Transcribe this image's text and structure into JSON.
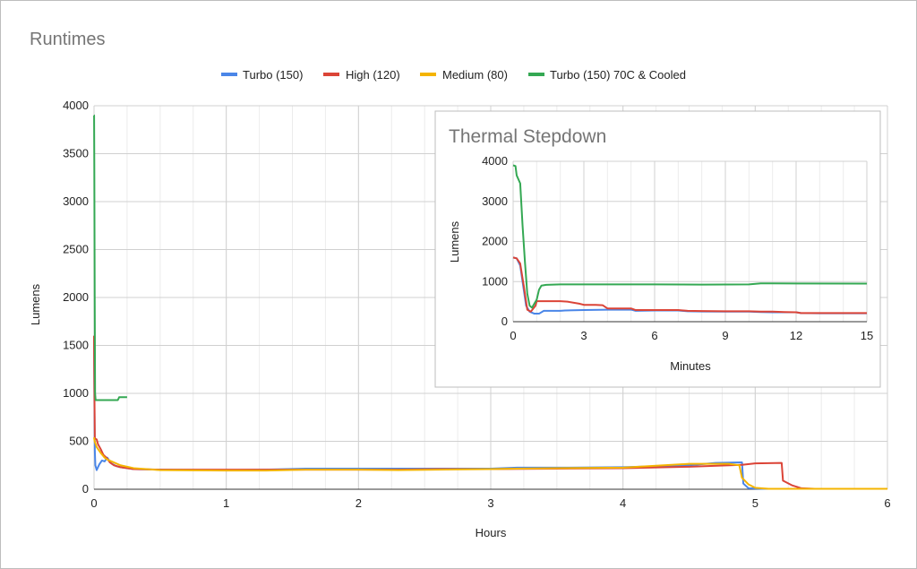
{
  "chart_data": [
    {
      "type": "line",
      "title": "Runtimes",
      "xlabel": "Hours",
      "ylabel": "Lumens",
      "xlim": [
        0,
        6
      ],
      "ylim": [
        0,
        4000
      ],
      "x_ticks": [
        0,
        1,
        2,
        3,
        4,
        5,
        6
      ],
      "y_ticks": [
        0,
        500,
        1000,
        1500,
        2000,
        2500,
        3000,
        3500,
        4000
      ],
      "grid": true,
      "legend_position": "top",
      "series": [
        {
          "name": "Turbo (150)",
          "color": "#4a86e8",
          "points": [
            [
              0,
              1600
            ],
            [
              0.003,
              900
            ],
            [
              0.006,
              400
            ],
            [
              0.01,
              250
            ],
            [
              0.02,
              200
            ],
            [
              0.04,
              260
            ],
            [
              0.06,
              300
            ],
            [
              0.08,
              290
            ],
            [
              0.1,
              330
            ],
            [
              0.13,
              270
            ],
            [
              0.17,
              240
            ],
            [
              0.2,
              230
            ],
            [
              0.3,
              210
            ],
            [
              0.5,
              205
            ],
            [
              1.0,
              200
            ],
            [
              1.3,
              205
            ],
            [
              1.6,
              215
            ],
            [
              2.0,
              215
            ],
            [
              2.3,
              215
            ],
            [
              2.6,
              215
            ],
            [
              3.0,
              215
            ],
            [
              3.2,
              225
            ],
            [
              3.5,
              225
            ],
            [
              4.0,
              230
            ],
            [
              4.5,
              250
            ],
            [
              4.7,
              275
            ],
            [
              4.9,
              280
            ],
            [
              4.91,
              60
            ],
            [
              4.95,
              10
            ],
            [
              5.05,
              5
            ],
            [
              5.3,
              5
            ],
            [
              6,
              5
            ]
          ]
        },
        {
          "name": "High (120)",
          "color": "#db4437",
          "points": [
            [
              0,
              1600
            ],
            [
              0.003,
              1000
            ],
            [
              0.006,
              530
            ],
            [
              0.02,
              520
            ],
            [
              0.03,
              470
            ],
            [
              0.05,
              420
            ],
            [
              0.07,
              360
            ],
            [
              0.1,
              320
            ],
            [
              0.12,
              280
            ],
            [
              0.15,
              250
            ],
            [
              0.2,
              230
            ],
            [
              0.3,
              210
            ],
            [
              0.5,
              205
            ],
            [
              1.0,
              205
            ],
            [
              1.5,
              205
            ],
            [
              2.0,
              205
            ],
            [
              2.3,
              205
            ],
            [
              2.6,
              210
            ],
            [
              3.0,
              210
            ],
            [
              3.5,
              215
            ],
            [
              4.0,
              220
            ],
            [
              4.5,
              235
            ],
            [
              4.9,
              255
            ],
            [
              5.0,
              270
            ],
            [
              5.2,
              275
            ],
            [
              5.21,
              90
            ],
            [
              5.28,
              40
            ],
            [
              5.35,
              10
            ],
            [
              5.45,
              5
            ],
            [
              6,
              5
            ]
          ]
        },
        {
          "name": "Medium (80)",
          "color": "#f4b400",
          "points": [
            [
              0,
              540
            ],
            [
              0.005,
              500
            ],
            [
              0.02,
              440
            ],
            [
              0.05,
              380
            ],
            [
              0.08,
              330
            ],
            [
              0.1,
              310
            ],
            [
              0.15,
              280
            ],
            [
              0.2,
              250
            ],
            [
              0.3,
              220
            ],
            [
              0.5,
              200
            ],
            [
              1.0,
              195
            ],
            [
              1.3,
              195
            ],
            [
              1.6,
              205
            ],
            [
              2.0,
              205
            ],
            [
              2.3,
              200
            ],
            [
              2.6,
              205
            ],
            [
              3.0,
              210
            ],
            [
              3.2,
              215
            ],
            [
              3.5,
              220
            ],
            [
              4.0,
              225
            ],
            [
              4.5,
              265
            ],
            [
              4.8,
              265
            ],
            [
              4.88,
              250
            ],
            [
              4.9,
              120
            ],
            [
              4.95,
              50
            ],
            [
              5.0,
              15
            ],
            [
              5.1,
              5
            ],
            [
              6,
              5
            ]
          ]
        },
        {
          "name": "Turbo (150) 70C & Cooled",
          "color": "#34a853",
          "points": [
            [
              0,
              3900
            ],
            [
              0.0005,
              3900
            ],
            [
              0.002,
              3400
            ],
            [
              0.005,
              2000
            ],
            [
              0.008,
              1000
            ],
            [
              0.012,
              930
            ],
            [
              0.05,
              930
            ],
            [
              0.1,
              930
            ],
            [
              0.18,
              930
            ],
            [
              0.19,
              960
            ],
            [
              0.25,
              960
            ]
          ]
        }
      ]
    },
    {
      "type": "line",
      "title": "Thermal Stepdown",
      "xlabel": "Minutes",
      "ylabel": "Lumens",
      "xlim": [
        0,
        15
      ],
      "ylim": [
        0,
        4000
      ],
      "x_ticks": [
        0,
        3,
        6,
        9,
        12,
        15
      ],
      "y_ticks": [
        0,
        1000,
        2000,
        3000,
        4000
      ],
      "grid": true,
      "series": [
        {
          "name": "Turbo (150)",
          "color": "#4a86e8",
          "points": [
            [
              0,
              1600
            ],
            [
              0.15,
              1580
            ],
            [
              0.3,
              1400
            ],
            [
              0.45,
              800
            ],
            [
              0.55,
              400
            ],
            [
              0.7,
              250
            ],
            [
              0.9,
              200
            ],
            [
              1.1,
              200
            ],
            [
              1.3,
              270
            ],
            [
              2.0,
              270
            ],
            [
              2.2,
              280
            ],
            [
              3.0,
              290
            ],
            [
              4.0,
              300
            ],
            [
              5.0,
              300
            ],
            [
              5.2,
              270
            ],
            [
              6.0,
              280
            ],
            [
              7.0,
              280
            ],
            [
              7.4,
              260
            ],
            [
              8.0,
              255
            ],
            [
              9.0,
              250
            ],
            [
              10.0,
              250
            ],
            [
              10.5,
              240
            ],
            [
              11.0,
              235
            ],
            [
              12.0,
              235
            ],
            [
              12.2,
              215
            ],
            [
              13.0,
              210
            ],
            [
              14.0,
              210
            ],
            [
              15,
              210
            ]
          ]
        },
        {
          "name": "High (120)",
          "color": "#db4437",
          "points": [
            [
              0,
              1600
            ],
            [
              0.15,
              1580
            ],
            [
              0.3,
              1450
            ],
            [
              0.45,
              900
            ],
            [
              0.55,
              500
            ],
            [
              0.6,
              300
            ],
            [
              0.75,
              250
            ],
            [
              0.95,
              400
            ],
            [
              1.0,
              510
            ],
            [
              1.5,
              510
            ],
            [
              2.0,
              510
            ],
            [
              2.3,
              500
            ],
            [
              2.8,
              450
            ],
            [
              3.0,
              420
            ],
            [
              3.5,
              420
            ],
            [
              3.8,
              410
            ],
            [
              4.0,
              330
            ],
            [
              4.5,
              330
            ],
            [
              5.0,
              330
            ],
            [
              5.2,
              290
            ],
            [
              6.0,
              290
            ],
            [
              7.0,
              290
            ],
            [
              7.4,
              270
            ],
            [
              8.0,
              265
            ],
            [
              9.0,
              260
            ],
            [
              10.0,
              260
            ],
            [
              10.5,
              250
            ],
            [
              11.0,
              250
            ],
            [
              11.5,
              240
            ],
            [
              12.0,
              235
            ],
            [
              12.2,
              215
            ],
            [
              13.0,
              215
            ],
            [
              15,
              215
            ]
          ]
        },
        {
          "name": "Turbo (150) 70C & Cooled",
          "color": "#34a853",
          "points": [
            [
              0,
              3900
            ],
            [
              0.1,
              3880
            ],
            [
              0.15,
              3650
            ],
            [
              0.3,
              3450
            ],
            [
              0.4,
              2400
            ],
            [
              0.5,
              1500
            ],
            [
              0.6,
              700
            ],
            [
              0.7,
              400
            ],
            [
              0.8,
              350
            ],
            [
              1.0,
              550
            ],
            [
              1.1,
              800
            ],
            [
              1.2,
              900
            ],
            [
              1.4,
              920
            ],
            [
              2.0,
              930
            ],
            [
              4.0,
              930
            ],
            [
              6.0,
              930
            ],
            [
              8.0,
              925
            ],
            [
              10.0,
              930
            ],
            [
              10.5,
              955
            ],
            [
              11.0,
              955
            ],
            [
              15,
              950
            ]
          ]
        }
      ]
    }
  ]
}
